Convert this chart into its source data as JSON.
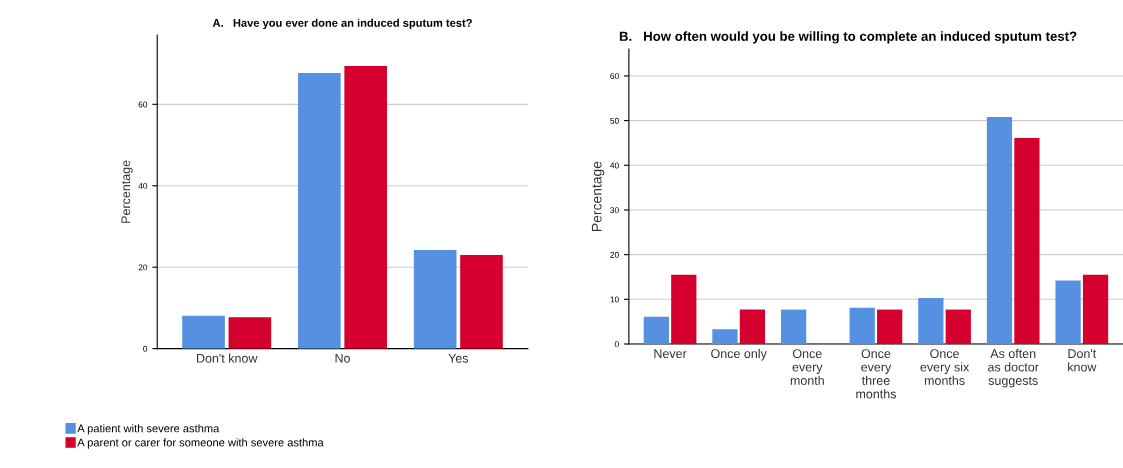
{
  "chart_data": [
    {
      "type": "bar",
      "title": "A.   Have you ever done an induced sputum test?",
      "ylabel": "Percentage",
      "categories": [
        "Don't know",
        "No",
        "Yes"
      ],
      "series": [
        {
          "name": "A patient with severe asthma",
          "color": "#5591e0",
          "values": [
            8.1,
            67.7,
            24.2
          ]
        },
        {
          "name": "A parent or carer for someone with severe asthma",
          "color": "#d6002f",
          "values": [
            7.7,
            69.4,
            23.0
          ]
        }
      ],
      "ylim": [
        0,
        77
      ],
      "yticks": [
        0,
        20,
        40,
        60
      ],
      "grid": "y",
      "legend": "bottom left"
    },
    {
      "type": "bar",
      "title": "B.   How often would you be willing to complete an induced sputum test?",
      "ylabel": "Percentage",
      "categories": [
        "Never",
        "Once only",
        "Once\nevery\nmonth",
        "Once\nevery\nthree\nmonths",
        "Once\nevery six\nmonths",
        "As often\nas doctor\nsuggests",
        "Don't\nknow"
      ],
      "series": [
        {
          "color": "#5591e0",
          "values": [
            6.1,
            3.3,
            7.7,
            8.1,
            10.3,
            50.8,
            14.2
          ]
        },
        {
          "color": "#d6002f",
          "values": [
            15.5,
            7.7,
            0,
            7.7,
            7.7,
            46.1,
            15.5
          ]
        }
      ],
      "ylim": [
        0,
        66
      ],
      "yticks": [
        0,
        10,
        20,
        30,
        40,
        50,
        60
      ],
      "grid": "y"
    }
  ]
}
